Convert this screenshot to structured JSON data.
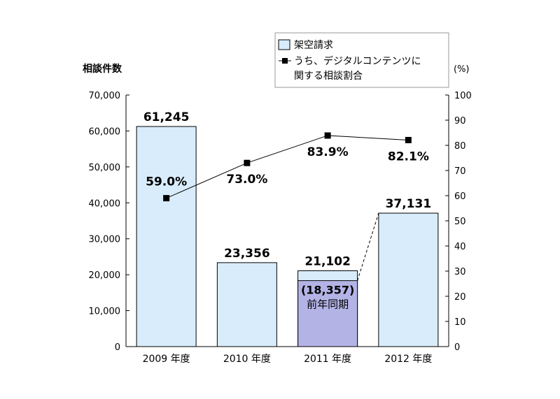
{
  "chart_data": {
    "type": "bar",
    "ylabel_left": "相談件数",
    "ylabel_right": "(%)",
    "categories": [
      "2009 年度",
      "2010 年度",
      "2011 年度",
      "2012 年度"
    ],
    "ylim_left": [
      0,
      70000
    ],
    "yticks_left": [
      "0",
      "10,000",
      "20,000",
      "30,000",
      "40,000",
      "50,000",
      "60,000",
      "70,000"
    ],
    "ylim_right": [
      0,
      100
    ],
    "yticks_right": [
      "0",
      "10",
      "20",
      "30",
      "40",
      "50",
      "60",
      "70",
      "80",
      "90",
      "100"
    ],
    "grid": false,
    "legend_position": "top-right",
    "series": [
      {
        "name": "架空請求",
        "kind": "bar",
        "axis": "left",
        "values": [
          61245,
          23356,
          21102,
          37131
        ],
        "labels": [
          "61,245",
          "23,356",
          "21,102",
          "37,131"
        ],
        "color": "#d9ecfb"
      },
      {
        "name": "うち、デジタルコンテンツに関する相談割合",
        "legend_lines": [
          "うち、デジタルコンテンツに",
          "関する相談割合"
        ],
        "kind": "line",
        "axis": "right",
        "values": [
          59.0,
          73.0,
          83.9,
          82.1
        ],
        "labels": [
          "59.0%",
          "73.0%",
          "83.9%",
          "82.1%"
        ],
        "color": "#000000"
      }
    ],
    "annotations": [
      {
        "category_index": 2,
        "value": 18357,
        "label": "(18,357)",
        "sublabel": "前年同期",
        "color": "#b3b3e6"
      }
    ]
  }
}
